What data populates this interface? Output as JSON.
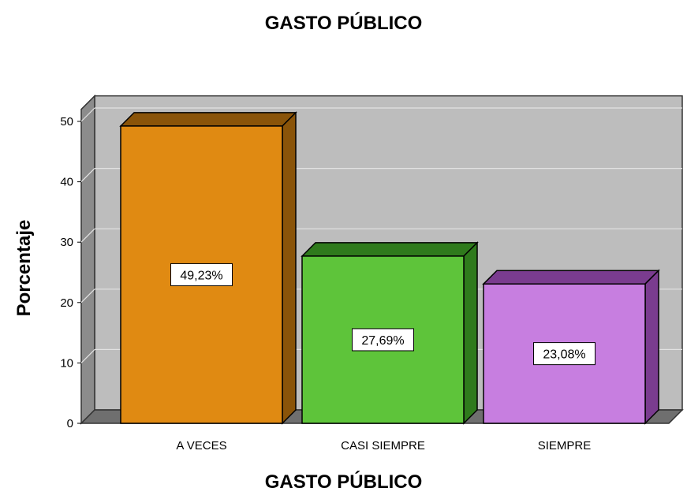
{
  "chart_data": {
    "type": "bar",
    "title": "GASTO PÚBLICO",
    "xlabel": "GASTO PÚBLICO",
    "ylabel": "Porcentaje",
    "categories": [
      "A VECES",
      "CASI SIEMPRE",
      "SIEMPRE"
    ],
    "values": [
      49.23,
      27.69,
      23.08
    ],
    "data_labels": [
      "49,23%",
      "27,69%",
      "23,08%"
    ],
    "yticks": [
      0,
      10,
      20,
      30,
      40,
      50
    ],
    "ylim": [
      0,
      52
    ],
    "grid": true,
    "style": "3d",
    "colors": [
      "#e08a12",
      "#5ec43a",
      "#c77ee0"
    ],
    "side_colors": [
      "#8a5409",
      "#2f7a1c",
      "#7a3c8f"
    ],
    "wall_color": "#bdbdbd"
  }
}
